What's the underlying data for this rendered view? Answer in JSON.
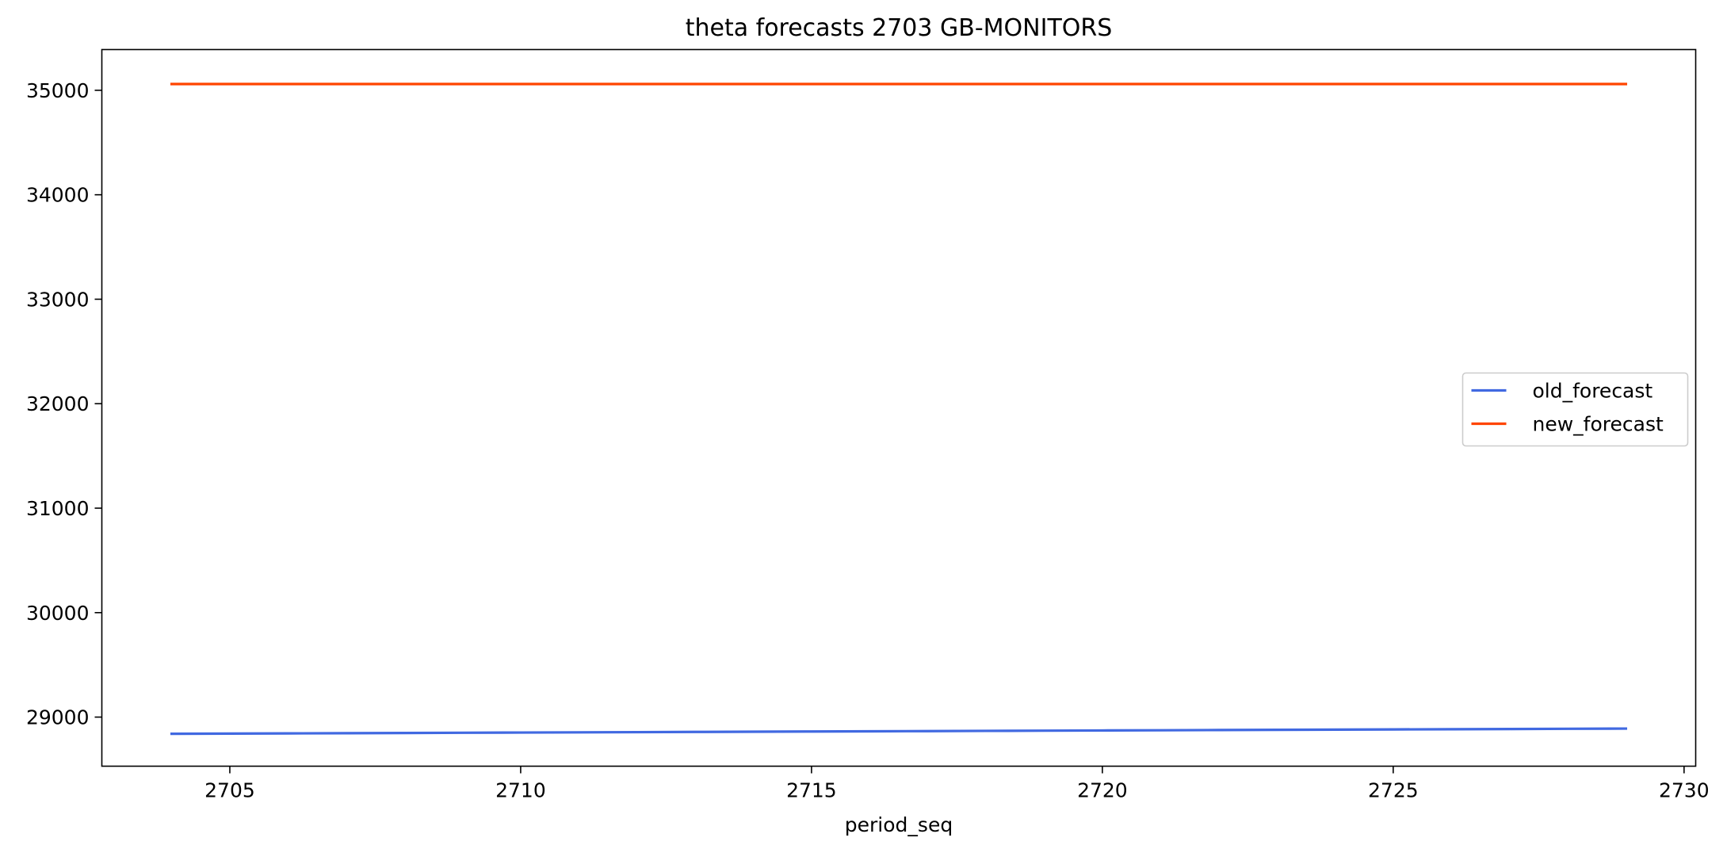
{
  "chart_data": {
    "type": "line",
    "title": "theta forecasts 2703 GB-MONITORS",
    "xlabel": "period_seq",
    "ylabel": "",
    "xlim": [
      2702.8,
      2730.2
    ],
    "ylim": [
      28530,
      35390
    ],
    "xticks": [
      2705,
      2710,
      2715,
      2720,
      2725,
      2730
    ],
    "yticks": [
      29000,
      30000,
      31000,
      32000,
      33000,
      34000,
      35000
    ],
    "grid": false,
    "legend_position": "center-right",
    "x": [
      2704,
      2705,
      2706,
      2707,
      2708,
      2709,
      2710,
      2711,
      2712,
      2713,
      2714,
      2715,
      2716,
      2717,
      2718,
      2719,
      2720,
      2721,
      2722,
      2723,
      2724,
      2725,
      2726,
      2727,
      2728,
      2729
    ],
    "series": [
      {
        "name": "old_forecast",
        "color": "#4169e1",
        "values": [
          28840,
          28842,
          28844,
          28846,
          28848,
          28850,
          28852,
          28854,
          28856,
          28858,
          28860,
          28862,
          28864,
          28866,
          28868,
          28870,
          28872,
          28874,
          28876,
          28878,
          28880,
          28882,
          28884,
          28886,
          28888,
          28890
        ]
      },
      {
        "name": "new_forecast",
        "color": "#ff4500",
        "values": [
          35060,
          35060,
          35060,
          35060,
          35060,
          35060,
          35060,
          35060,
          35060,
          35060,
          35060,
          35060,
          35060,
          35060,
          35060,
          35060,
          35060,
          35060,
          35060,
          35060,
          35060,
          35060,
          35060,
          35060,
          35060,
          35060
        ]
      }
    ]
  }
}
